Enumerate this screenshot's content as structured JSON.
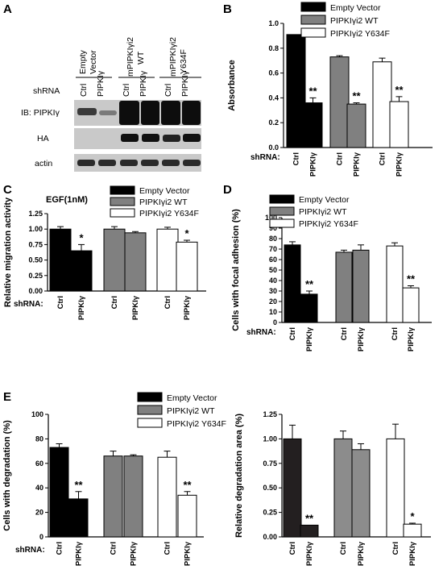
{
  "figure": {
    "panel_labels": [
      "A",
      "B",
      "C",
      "D",
      "E"
    ]
  },
  "blot": {
    "group_headers": [
      "Empty Vector",
      "mPIPKIγi2 WT",
      "mPIPKIγi2 Y634F"
    ],
    "shrna_label": "shRNA",
    "lanes": [
      "Ctrl",
      "PIPKIγ",
      "Ctrl",
      "PIPKIγ",
      "Ctrl",
      "PIPKIγ"
    ],
    "rows": [
      "IB: PIPKIγ",
      "HA",
      "actin"
    ]
  },
  "chart_data": [
    {
      "id": "B",
      "type": "bar",
      "title": "",
      "ylabel": "Absorbance",
      "ylim": [
        0,
        1.0
      ],
      "yticks": [
        "0.0",
        "0.2",
        "0.4",
        "0.6",
        "0.8",
        "1.0"
      ],
      "legend": [
        "Empty Vector",
        "PIPKIγi2 WT",
        "PIPKIγi2 Y634F"
      ],
      "shrna_label": "shRNA:",
      "categories": [
        "Ctrl",
        "PIPKIγ",
        "Ctrl",
        "PIPKIγ",
        "Ctrl",
        "PIPKIγ"
      ],
      "values": [
        0.91,
        0.36,
        0.73,
        0.35,
        0.69,
        0.37
      ],
      "errors": [
        0.0,
        0.04,
        0.01,
        0.01,
        0.03,
        0.04
      ],
      "significance": [
        "",
        "**",
        "",
        "**",
        "",
        "**"
      ]
    },
    {
      "id": "C",
      "type": "bar",
      "title": "EGF(1nM)",
      "ylabel": "Relative migration activity",
      "ylim": [
        0,
        1.25
      ],
      "yticks": [
        "0.00",
        "0.25",
        "0.50",
        "0.75",
        "1.00",
        "1.25"
      ],
      "legend": [
        "Empty Vector",
        "PIPKIγi2 WT",
        "PIPKIγi2 Y634F"
      ],
      "shrna_label": "shRNA:",
      "categories": [
        "Ctrl",
        "PIPKIγ",
        "Ctrl",
        "PIPKIγ",
        "Ctrl",
        "PIPKIγ"
      ],
      "values": [
        1.0,
        0.65,
        1.0,
        0.94,
        1.0,
        0.79
      ],
      "errors": [
        0.04,
        0.1,
        0.04,
        0.02,
        0.03,
        0.03
      ],
      "significance": [
        "",
        "*",
        "",
        "",
        "",
        "*"
      ]
    },
    {
      "id": "D",
      "type": "bar",
      "title": "",
      "ylabel": "Cells with focal adhesion (%)",
      "ylim": [
        0,
        100
      ],
      "yticks": [
        "0",
        "10",
        "20",
        "30",
        "40",
        "50",
        "60",
        "70",
        "80",
        "90",
        "100"
      ],
      "legend": [
        "Empty Vector",
        "PIPKIγi2 WT",
        "PIPKIγi2 Y634F"
      ],
      "shrna_label": "shRNA:",
      "categories": [
        "Ctrl",
        "PIPKIγ",
        "Ctrl",
        "PIPKIγ",
        "Ctrl",
        "PIPKIγ"
      ],
      "values": [
        74,
        27,
        67,
        69,
        73,
        33
      ],
      "errors": [
        3,
        3,
        2,
        5,
        3,
        2
      ],
      "significance": [
        "",
        "**",
        "",
        "",
        "",
        "**"
      ]
    },
    {
      "id": "E1",
      "type": "bar",
      "title": "",
      "ylabel": "Cells with degradation (%)",
      "ylim": [
        0,
        100
      ],
      "yticks": [
        "0",
        "20",
        "40",
        "60",
        "80",
        "100"
      ],
      "legend": [
        "Empty Vector",
        "PIPKIγi2 WT",
        "PIPKIγi2 Y634F"
      ],
      "shrna_label": "shRNA:",
      "categories": [
        "Ctrl",
        "PIPKIγ",
        "Ctrl",
        "PIPKIγ",
        "Ctrl",
        "PIPKIγ"
      ],
      "values": [
        73,
        31,
        66,
        66,
        65,
        34
      ],
      "errors": [
        3,
        6,
        4,
        1,
        5,
        3
      ],
      "significance": [
        "",
        "**",
        "",
        "",
        "",
        "**"
      ]
    },
    {
      "id": "E2",
      "type": "bar",
      "title": "",
      "ylabel": "Relative degradation area (%)",
      "ylim": [
        0,
        1.25
      ],
      "yticks": [
        "0.00",
        "0.25",
        "0.50",
        "0.75",
        "1.00",
        "1.25"
      ],
      "legend": [],
      "shrna_label": "",
      "categories": [
        "Ctrl",
        "PIPKIγ",
        "Ctrl",
        "PIPKIγ",
        "Ctrl",
        "PIPKIγ"
      ],
      "values": [
        1.0,
        0.12,
        1.0,
        0.89,
        1.0,
        0.13
      ],
      "errors": [
        0.14,
        0.0,
        0.08,
        0.06,
        0.15,
        0.01
      ],
      "significance": [
        "",
        "**",
        "",
        "",
        "",
        "*"
      ]
    }
  ],
  "colors": {
    "empty_vector": "#000000",
    "wt": "#808080",
    "y634f": "#ffffff",
    "e2_empty": "#231f20",
    "e2_wt": "#8c8c8c"
  }
}
